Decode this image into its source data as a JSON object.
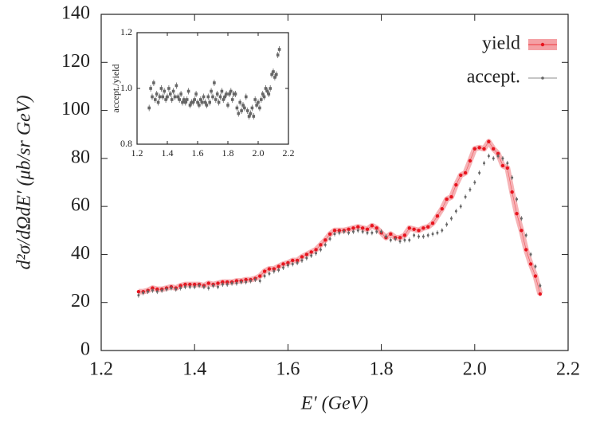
{
  "chart_data": [
    {
      "type": "scatter",
      "xlabel": "E′ (GeV)",
      "ylabel": "d²σ/dΩdE′ (μb/sr GeV)",
      "x": [
        1.28,
        1.29,
        1.3,
        1.31,
        1.32,
        1.33,
        1.34,
        1.35,
        1.36,
        1.37,
        1.38,
        1.39,
        1.4,
        1.41,
        1.42,
        1.43,
        1.44,
        1.45,
        1.46,
        1.47,
        1.48,
        1.49,
        1.5,
        1.51,
        1.52,
        1.53,
        1.54,
        1.55,
        1.56,
        1.57,
        1.58,
        1.59,
        1.6,
        1.61,
        1.62,
        1.63,
        1.64,
        1.65,
        1.66,
        1.67,
        1.68,
        1.69,
        1.7,
        1.71,
        1.72,
        1.73,
        1.74,
        1.75,
        1.76,
        1.77,
        1.78,
        1.79,
        1.8,
        1.81,
        1.82,
        1.83,
        1.84,
        1.85,
        1.86,
        1.87,
        1.88,
        1.89,
        1.9,
        1.91,
        1.92,
        1.93,
        1.94,
        1.95,
        1.96,
        1.97,
        1.98,
        1.99,
        2.0,
        2.01,
        2.02,
        2.03,
        2.04,
        2.05,
        2.06,
        2.07,
        2.08,
        2.09,
        2.1,
        2.11,
        2.12,
        2.13,
        2.14
      ],
      "series": [
        {
          "name": "yield",
          "color": "#e8141e",
          "band_color": "#f4a0a4",
          "values": [
            24.5,
            24.5,
            25,
            26,
            25.5,
            25.5,
            26,
            26.5,
            26,
            27,
            27.5,
            27.5,
            27.5,
            27.5,
            27,
            28,
            27.5,
            28,
            28.5,
            28.5,
            28.5,
            29,
            29,
            29.5,
            29.5,
            30,
            31,
            33,
            34,
            34,
            35,
            36,
            36.5,
            37.5,
            37.5,
            39,
            40,
            41,
            42,
            44,
            46,
            48.5,
            50,
            50,
            50,
            50.5,
            51,
            51.5,
            51,
            50.5,
            52,
            51,
            49,
            47,
            48.5,
            47,
            47,
            48,
            51,
            50.5,
            50,
            51,
            51.5,
            53,
            56,
            59,
            63,
            64,
            69,
            73,
            74,
            79,
            84,
            84.5,
            84,
            87,
            84,
            82,
            77,
            76,
            66,
            57,
            50,
            42,
            36,
            31,
            23.5
          ]
        },
        {
          "name": "accept.",
          "color": "#666666",
          "values": [
            23,
            24,
            24.5,
            25,
            24.5,
            25,
            25.5,
            26,
            25.5,
            26,
            26.5,
            26.5,
            26.5,
            27,
            26.5,
            26,
            27,
            26.5,
            27.5,
            27.5,
            28,
            28,
            28.5,
            28.5,
            29,
            29.5,
            29,
            31,
            32,
            33,
            33.5,
            34.5,
            35.5,
            36,
            36.5,
            37.5,
            38.5,
            39.5,
            40.5,
            42,
            44,
            46.5,
            48.5,
            49,
            49.5,
            49,
            49.5,
            50,
            49.5,
            49,
            49,
            49.5,
            49.5,
            47.5,
            46,
            46.5,
            45.5,
            46,
            46,
            48,
            47.5,
            47.5,
            48,
            48.5,
            49,
            50,
            52.5,
            55,
            58,
            60,
            64,
            67,
            70,
            74,
            78,
            81,
            80,
            81,
            80,
            78,
            72,
            63,
            55,
            48,
            40,
            35,
            27
          ]
        }
      ],
      "xlim": [
        1.2,
        2.2
      ],
      "xticks": [
        1.2,
        1.4,
        1.6,
        1.8,
        {
          "value": 2,
          "label": "2.0"
        },
        2.2
      ],
      "ylim": [
        0,
        140
      ],
      "yticks": [
        0,
        20,
        40,
        60,
        80,
        100,
        120,
        140
      ],
      "legend": "upper right"
    },
    {
      "type": "scatter",
      "ylabel": "accept./yield",
      "x": [
        1.28,
        1.29,
        1.3,
        1.31,
        1.32,
        1.33,
        1.34,
        1.35,
        1.36,
        1.37,
        1.38,
        1.39,
        1.4,
        1.41,
        1.42,
        1.43,
        1.44,
        1.45,
        1.46,
        1.47,
        1.48,
        1.49,
        1.5,
        1.51,
        1.52,
        1.53,
        1.54,
        1.55,
        1.56,
        1.57,
        1.58,
        1.59,
        1.6,
        1.61,
        1.62,
        1.63,
        1.64,
        1.65,
        1.66,
        1.67,
        1.68,
        1.69,
        1.7,
        1.71,
        1.72,
        1.73,
        1.74,
        1.75,
        1.76,
        1.77,
        1.78,
        1.79,
        1.8,
        1.81,
        1.82,
        1.83,
        1.84,
        1.85,
        1.86,
        1.87,
        1.88,
        1.89,
        1.9,
        1.91,
        1.92,
        1.93,
        1.94,
        1.95,
        1.96,
        1.97,
        1.98,
        1.99,
        2.0,
        2.01,
        2.02,
        2.03,
        2.04,
        2.05,
        2.06,
        2.07,
        2.08,
        2.09,
        2.1,
        2.11,
        2.12,
        2.13,
        2.14
      ],
      "series": [
        {
          "color": "#666666",
          "values": [
            0.93,
            1.0,
            0.97,
            1.02,
            0.96,
            0.98,
            0.95,
            0.97,
            1.0,
            0.97,
            0.99,
            0.96,
            0.97,
            1.0,
            0.98,
            0.96,
            0.99,
            0.97,
            1.01,
            0.97,
            0.96,
            0.98,
            0.95,
            0.96,
            0.95,
            0.96,
            0.99,
            0.94,
            0.95,
            0.95,
            0.96,
            0.98,
            0.95,
            0.94,
            0.96,
            0.95,
            0.97,
            0.95,
            0.94,
            0.97,
            0.95,
            0.99,
            0.97,
            1.02,
            0.96,
            0.98,
            0.95,
            0.97,
            0.99,
            0.96,
            0.97,
            0.98,
            0.94,
            0.98,
            0.99,
            0.96,
            0.98,
            0.98,
            0.93,
            0.91,
            0.95,
            0.92,
            0.94,
            0.93,
            0.97,
            0.92,
            0.9,
            0.91,
            0.93,
            0.9,
            0.96,
            0.94,
            0.95,
            0.93,
            0.96,
            0.98,
            0.97,
            1.0,
            0.99,
            0.98,
            1.0,
            1.05,
            1.06,
            1.04,
            1.05,
            1.12,
            1.14
          ]
        }
      ],
      "xlim": [
        1.2,
        2.2
      ],
      "xticks": [
        1.2,
        1.4,
        1.6,
        1.8,
        {
          "value": 2,
          "label": "2.0"
        },
        2.2
      ],
      "ylim": [
        0.8,
        1.2
      ],
      "yticks": [
        0.8,
        {
          "value": 1,
          "label": "1.0"
        },
        1.2
      ]
    }
  ]
}
